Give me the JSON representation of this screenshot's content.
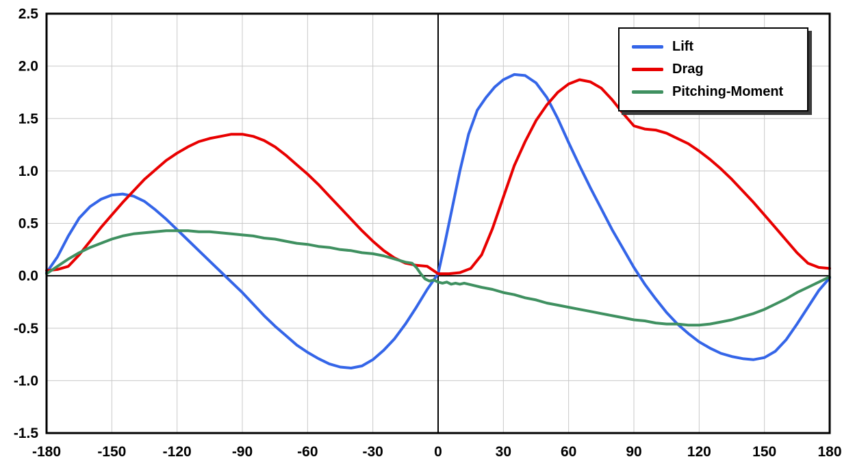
{
  "chart_data": {
    "type": "line",
    "title": "",
    "xlabel": "",
    "ylabel": "",
    "xlim": [
      -180,
      180
    ],
    "ylim": [
      -1.5,
      2.5
    ],
    "grid": true,
    "legend_position": "top-right",
    "legend_entries": [
      "Lift",
      "Drag",
      "Pitching-Moment"
    ],
    "x_ticks": [
      -180,
      -150,
      -120,
      -90,
      -60,
      -30,
      0,
      30,
      60,
      90,
      120,
      150,
      180
    ],
    "x_tick_labels": [
      "-180",
      "-150",
      "-120",
      "-90",
      "-60",
      "-30",
      "0",
      "30",
      "60",
      "90",
      "120",
      "150",
      "180"
    ],
    "y_ticks": [
      -1.5,
      -1.0,
      -0.5,
      0,
      0.5,
      1.0,
      1.5,
      2.0,
      2.5
    ],
    "y_tick_labels": [
      "-1.5",
      "-1.0",
      "-0.5",
      "0.0",
      "0.5",
      "1.0",
      "1.5",
      "2.0",
      "2.5"
    ],
    "series": [
      {
        "name": "Lift",
        "color": "#3465e8",
        "x": [
          -180,
          -175,
          -170,
          -165,
          -160,
          -155,
          -150,
          -145,
          -140,
          -135,
          -130,
          -125,
          -120,
          -115,
          -110,
          -105,
          -100,
          -95,
          -90,
          -85,
          -80,
          -75,
          -70,
          -65,
          -60,
          -55,
          -50,
          -45,
          -40,
          -35,
          -30,
          -25,
          -20,
          -15,
          -10,
          -5,
          0,
          3,
          6,
          10,
          14,
          18,
          22,
          26,
          30,
          35,
          40,
          45,
          50,
          55,
          60,
          65,
          70,
          75,
          80,
          85,
          90,
          95,
          100,
          105,
          110,
          115,
          120,
          125,
          130,
          135,
          140,
          145,
          150,
          155,
          160,
          165,
          170,
          175,
          180
        ],
        "values": [
          0.03,
          0.18,
          0.38,
          0.55,
          0.66,
          0.73,
          0.77,
          0.78,
          0.76,
          0.71,
          0.63,
          0.54,
          0.44,
          0.34,
          0.24,
          0.14,
          0.04,
          -0.06,
          -0.16,
          -0.27,
          -0.38,
          -0.48,
          -0.57,
          -0.66,
          -0.73,
          -0.79,
          -0.84,
          -0.87,
          -0.88,
          -0.86,
          -0.8,
          -0.71,
          -0.6,
          -0.46,
          -0.3,
          -0.13,
          0.02,
          0.3,
          0.6,
          1.0,
          1.35,
          1.58,
          1.7,
          1.8,
          1.87,
          1.92,
          1.91,
          1.84,
          1.7,
          1.5,
          1.27,
          1.05,
          0.84,
          0.64,
          0.44,
          0.26,
          0.08,
          -0.08,
          -0.22,
          -0.35,
          -0.46,
          -0.55,
          -0.63,
          -0.69,
          -0.74,
          -0.77,
          -0.79,
          -0.8,
          -0.78,
          -0.72,
          -0.61,
          -0.46,
          -0.3,
          -0.14,
          -0.02
        ]
      },
      {
        "name": "Drag",
        "color": "#e80000",
        "x": [
          -180,
          -175,
          -170,
          -165,
          -160,
          -155,
          -150,
          -145,
          -140,
          -135,
          -130,
          -125,
          -120,
          -115,
          -110,
          -105,
          -100,
          -95,
          -90,
          -85,
          -80,
          -75,
          -70,
          -65,
          -60,
          -55,
          -50,
          -45,
          -40,
          -35,
          -30,
          -25,
          -20,
          -15,
          -10,
          -5,
          0,
          5,
          10,
          15,
          20,
          25,
          30,
          35,
          40,
          45,
          50,
          55,
          60,
          65,
          70,
          75,
          80,
          85,
          90,
          95,
          100,
          105,
          110,
          115,
          120,
          125,
          130,
          135,
          140,
          145,
          150,
          155,
          160,
          165,
          170,
          175,
          180
        ],
        "values": [
          0.05,
          0.06,
          0.09,
          0.2,
          0.33,
          0.46,
          0.58,
          0.7,
          0.81,
          0.92,
          1.01,
          1.1,
          1.17,
          1.23,
          1.28,
          1.31,
          1.33,
          1.35,
          1.35,
          1.33,
          1.29,
          1.23,
          1.15,
          1.06,
          0.97,
          0.87,
          0.76,
          0.65,
          0.54,
          0.43,
          0.33,
          0.24,
          0.17,
          0.12,
          0.1,
          0.09,
          0.02,
          0.02,
          0.03,
          0.07,
          0.2,
          0.45,
          0.75,
          1.05,
          1.28,
          1.48,
          1.63,
          1.75,
          1.83,
          1.87,
          1.85,
          1.79,
          1.68,
          1.55,
          1.43,
          1.4,
          1.39,
          1.36,
          1.31,
          1.26,
          1.19,
          1.11,
          1.02,
          0.92,
          0.81,
          0.7,
          0.58,
          0.46,
          0.34,
          0.22,
          0.12,
          0.08,
          0.07
        ]
      },
      {
        "name": "Pitching-Moment",
        "color": "#3f9060",
        "x": [
          -180,
          -175,
          -170,
          -165,
          -160,
          -155,
          -150,
          -145,
          -140,
          -135,
          -130,
          -125,
          -120,
          -115,
          -110,
          -105,
          -100,
          -95,
          -90,
          -85,
          -80,
          -75,
          -70,
          -65,
          -60,
          -55,
          -50,
          -45,
          -40,
          -35,
          -30,
          -25,
          -20,
          -15,
          -12,
          -10,
          -8,
          -6,
          -4,
          -2,
          0,
          2,
          4,
          6,
          8,
          10,
          12,
          14,
          16,
          20,
          25,
          30,
          35,
          40,
          45,
          50,
          55,
          60,
          65,
          70,
          75,
          80,
          85,
          90,
          95,
          100,
          105,
          110,
          115,
          120,
          125,
          130,
          135,
          140,
          145,
          150,
          155,
          160,
          165,
          170,
          175,
          180
        ],
        "values": [
          0.02,
          0.09,
          0.16,
          0.22,
          0.27,
          0.31,
          0.35,
          0.38,
          0.4,
          0.41,
          0.42,
          0.43,
          0.43,
          0.43,
          0.42,
          0.42,
          0.41,
          0.4,
          0.39,
          0.38,
          0.36,
          0.35,
          0.33,
          0.31,
          0.3,
          0.28,
          0.27,
          0.25,
          0.24,
          0.22,
          0.21,
          0.19,
          0.16,
          0.13,
          0.12,
          0.08,
          0.02,
          -0.03,
          -0.05,
          -0.04,
          -0.06,
          -0.07,
          -0.06,
          -0.08,
          -0.07,
          -0.08,
          -0.07,
          -0.08,
          -0.09,
          -0.11,
          -0.13,
          -0.16,
          -0.18,
          -0.21,
          -0.23,
          -0.26,
          -0.28,
          -0.3,
          -0.32,
          -0.34,
          -0.36,
          -0.38,
          -0.4,
          -0.42,
          -0.43,
          -0.45,
          -0.46,
          -0.46,
          -0.47,
          -0.47,
          -0.46,
          -0.44,
          -0.42,
          -0.39,
          -0.36,
          -0.32,
          -0.27,
          -0.22,
          -0.16,
          -0.11,
          -0.06,
          -0.01
        ]
      }
    ]
  },
  "style": {
    "background": "#ffffff",
    "grid_color": "#c8c8c8",
    "axis_color": "#000000",
    "frame_color": "#000000",
    "legend_border_color": "#000000",
    "legend_shadow_color": "#3c3c3c"
  }
}
